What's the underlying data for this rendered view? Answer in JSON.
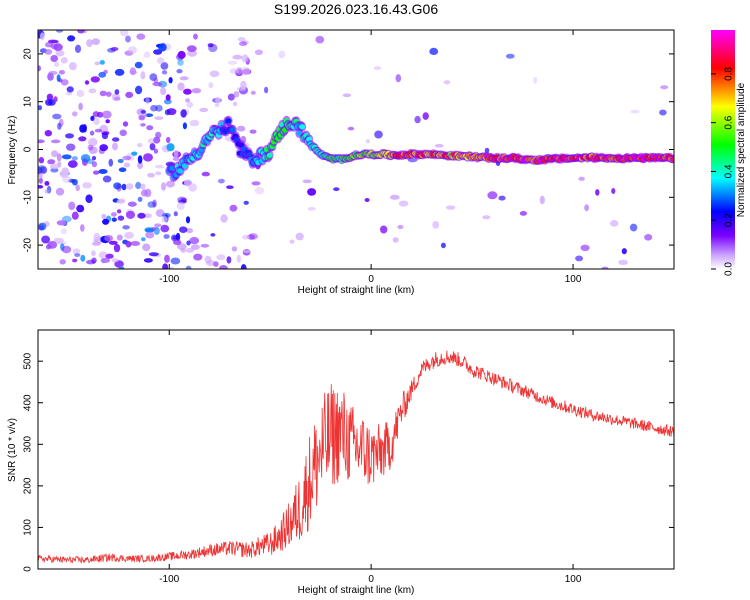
{
  "chart_data": [
    {
      "type": "heatmap",
      "title": "S199.2026.023.16.43.G06",
      "xlabel": "Height of straight line (km)",
      "ylabel": "Frequency (Hz)",
      "xlim": [
        -165,
        150
      ],
      "ylim": [
        -25,
        25
      ],
      "x_ticks": [
        -100,
        0,
        100
      ],
      "y_ticks": [
        -20,
        -10,
        0,
        10,
        20
      ],
      "x_tick_labels": [
        "-100",
        "0",
        "100"
      ],
      "y_tick_labels": [
        "-20",
        "-10",
        "0",
        "10",
        "20"
      ],
      "colorbar": {
        "label": "Normalized spectral amplitude",
        "range": [
          0,
          0.98
        ],
        "ticks": [
          0.0,
          0.2,
          0.4,
          0.6,
          0.8
        ],
        "tick_labels": [
          "0.0",
          "0.2",
          "0.4",
          "0.6",
          "0.8"
        ],
        "colormap": [
          "#ffffff",
          "#7a00ff",
          "#0000ff",
          "#00ffff",
          "#00ff00",
          "#ffff00",
          "#ff0000",
          "#ff00ff"
        ]
      },
      "ridge": {
        "x": [
          -100,
          -95,
          -90,
          -85,
          -80,
          -75,
          -70,
          -65,
          -60,
          -55,
          -52,
          -50,
          -47,
          -45,
          -42,
          -40,
          -37,
          -35,
          -32,
          -30,
          -25,
          -20,
          -15,
          -10,
          -5,
          0,
          5,
          10,
          20,
          30,
          40,
          50,
          60,
          70,
          80,
          90,
          100,
          110,
          120,
          130,
          140,
          150
        ],
        "f": [
          -5,
          -4,
          -2,
          0,
          3,
          4,
          5,
          0,
          -2,
          -1.5,
          -1,
          0,
          2,
          4,
          5,
          6,
          5,
          4,
          3,
          1,
          -1,
          -2,
          -2,
          -1.5,
          -1,
          -1,
          -1,
          -1.2,
          -1,
          -1,
          -1.3,
          -1.5,
          -1.8,
          -1.8,
          -2.2,
          -2,
          -1.8,
          -1.7,
          -1.8,
          -1.8,
          -1.8,
          -1.8
        ],
        "amp": [
          0.35,
          0.38,
          0.38,
          0.4,
          0.42,
          0.35,
          0.3,
          0.25,
          0.3,
          0.4,
          0.45,
          0.5,
          0.55,
          0.5,
          0.48,
          0.45,
          0.42,
          0.4,
          0.4,
          0.4,
          0.42,
          0.5,
          0.55,
          0.6,
          0.6,
          0.62,
          0.65,
          0.75,
          0.85,
          0.8,
          0.75,
          0.8,
          0.9,
          0.95,
          0.9,
          0.92,
          0.85,
          0.88,
          0.9,
          0.92,
          0.9,
          0.88
        ]
      }
    },
    {
      "type": "line",
      "title": "",
      "xlabel": "Height of straight line (km)",
      "ylabel": "SNR (10 * v/v)",
      "xlim": [
        -165,
        150
      ],
      "ylim": [
        0,
        575
      ],
      "x_ticks": [
        -100,
        0,
        100
      ],
      "y_ticks": [
        0,
        100,
        200,
        300,
        400,
        500
      ],
      "x_tick_labels": [
        "-100",
        "0",
        "100"
      ],
      "y_tick_labels": [
        "0",
        "100",
        "200",
        "300",
        "400",
        "500"
      ],
      "series": [
        {
          "name": "SNR",
          "color": "#ee3333",
          "x": [
            -165,
            -150,
            -140,
            -130,
            -120,
            -110,
            -100,
            -90,
            -80,
            -70,
            -60,
            -55,
            -50,
            -45,
            -40,
            -35,
            -30,
            -25,
            -20,
            -15,
            -10,
            -5,
            0,
            5,
            10,
            15,
            20,
            25,
            30,
            35,
            40,
            45,
            50,
            60,
            70,
            80,
            90,
            100,
            110,
            120,
            130,
            140,
            150
          ],
          "values": [
            25,
            22,
            22,
            28,
            25,
            25,
            30,
            35,
            45,
            50,
            45,
            55,
            60,
            80,
            110,
            150,
            220,
            280,
            320,
            330,
            300,
            290,
            270,
            280,
            300,
            380,
            430,
            480,
            500,
            510,
            510,
            500,
            480,
            460,
            440,
            420,
            400,
            385,
            370,
            360,
            350,
            340,
            330
          ],
          "jitter": [
            8,
            8,
            8,
            10,
            8,
            8,
            10,
            12,
            15,
            18,
            20,
            25,
            30,
            40,
            60,
            90,
            120,
            130,
            130,
            120,
            100,
            90,
            80,
            70,
            60,
            40,
            25,
            20,
            20,
            20,
            18,
            18,
            18,
            16,
            16,
            15,
            15,
            15,
            14,
            14,
            14,
            14,
            14
          ]
        }
      ]
    }
  ]
}
